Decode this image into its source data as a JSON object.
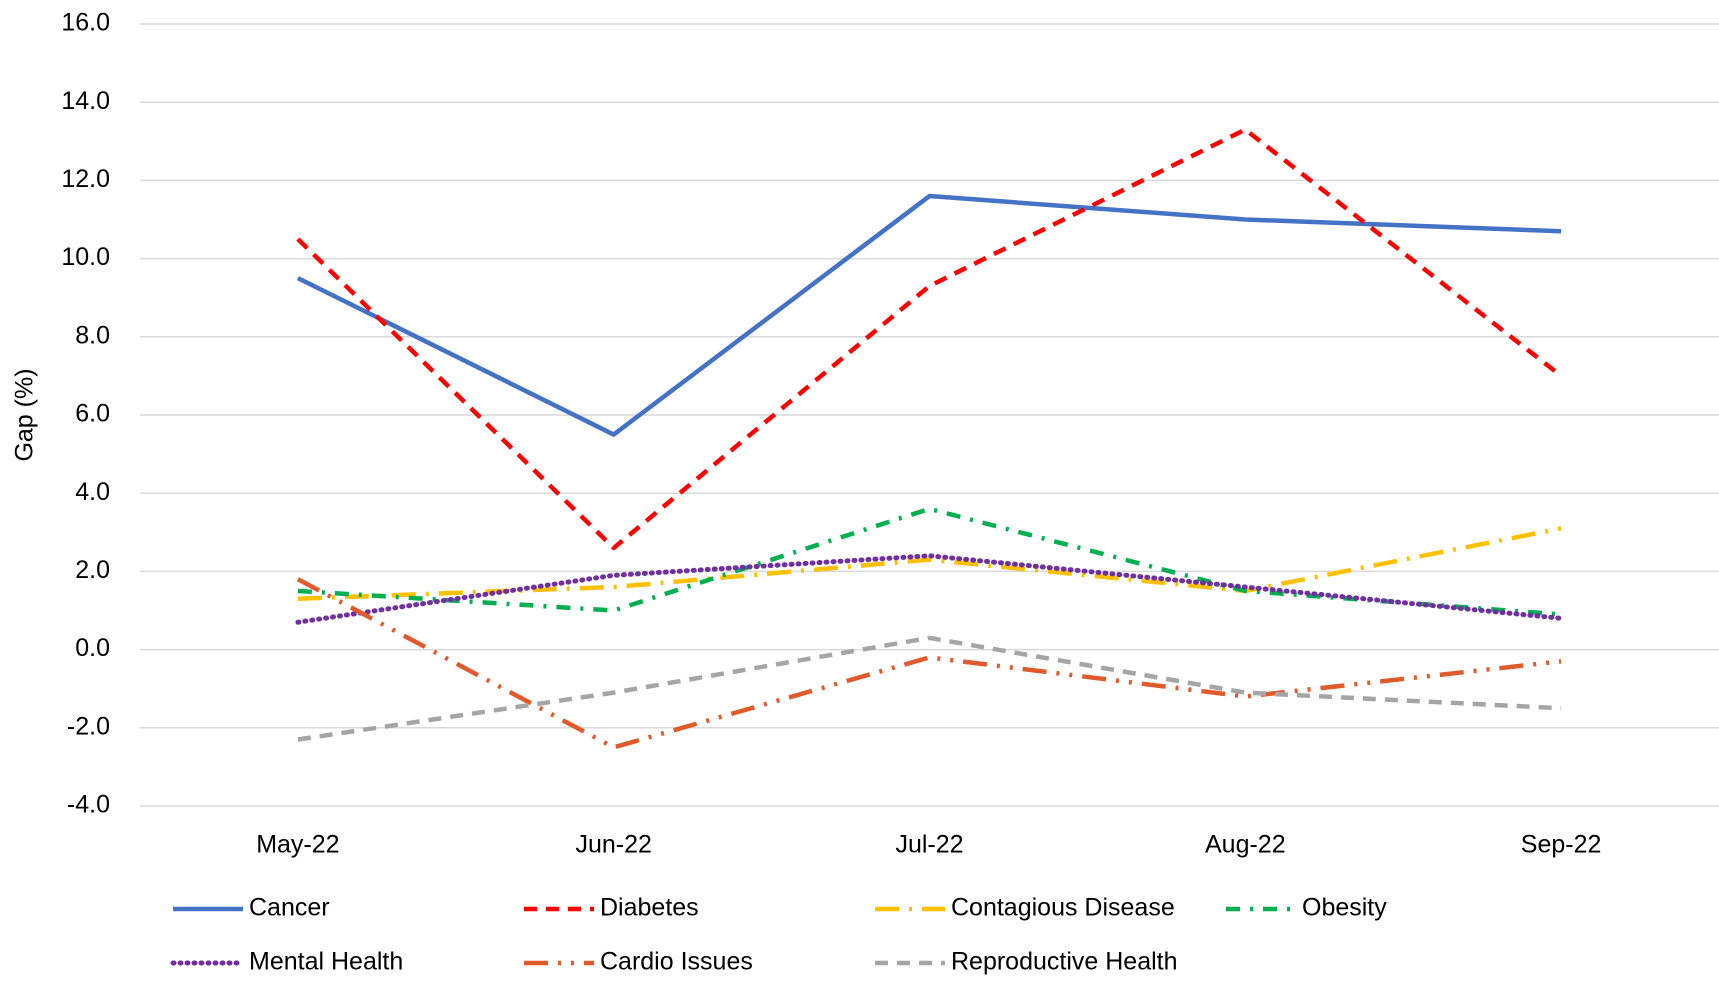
{
  "chart_data": {
    "type": "line",
    "y_label": "Gap (%)",
    "categories": [
      "May-22",
      "Jun-22",
      "Jul-22",
      "Aug-22",
      "Sep-22"
    ],
    "series": [
      {
        "name": "Cancer",
        "color": "#4472c4",
        "line_style": "solid",
        "values": [
          9.5,
          5.5,
          11.6,
          11.0,
          10.7
        ]
      },
      {
        "name": "Diabetes",
        "color": "#ff0000",
        "line_style": "dash",
        "values": [
          10.5,
          2.6,
          9.3,
          13.3,
          7.0
        ]
      },
      {
        "name": "Contagious Disease",
        "color": "#ffc000",
        "line_style": "long-dash-dot",
        "values": [
          1.3,
          1.6,
          2.3,
          1.5,
          3.1
        ]
      },
      {
        "name": "Obesity",
        "color": "#00b050",
        "line_style": "dash-dot",
        "values": [
          1.5,
          1.0,
          3.6,
          1.5,
          0.9
        ]
      },
      {
        "name": "Mental Health",
        "color": "#7030a0",
        "line_style": "dot",
        "values": [
          0.7,
          1.9,
          2.4,
          1.6,
          0.8
        ]
      },
      {
        "name": "Cardio Issues",
        "color": "#e05a2b",
        "line_style": "long-dash-dot-dot",
        "values": [
          1.8,
          -2.5,
          -0.2,
          -1.2,
          -0.3
        ]
      },
      {
        "name": "Reproductive Health",
        "color": "#a5a5a5",
        "line_style": "dash",
        "values": [
          -2.3,
          -1.1,
          0.3,
          -1.1,
          -1.5
        ]
      }
    ],
    "ylim": [
      -4,
      16
    ],
    "yticks": [
      {
        "value": -4,
        "label": "-4.0"
      },
      {
        "value": -2,
        "label": "-2.0"
      },
      {
        "value": 0,
        "label": "0.0"
      },
      {
        "value": 2,
        "label": "2.0"
      },
      {
        "value": 4,
        "label": "4.0"
      },
      {
        "value": 6,
        "label": "6.0"
      },
      {
        "value": 8,
        "label": "8.0"
      },
      {
        "value": 10,
        "label": "10.0"
      },
      {
        "value": 12,
        "label": "12.0"
      },
      {
        "value": 14,
        "label": "14.0"
      },
      {
        "value": 16,
        "label": "16.0"
      }
    ],
    "grid": true,
    "legend": "bottom"
  }
}
